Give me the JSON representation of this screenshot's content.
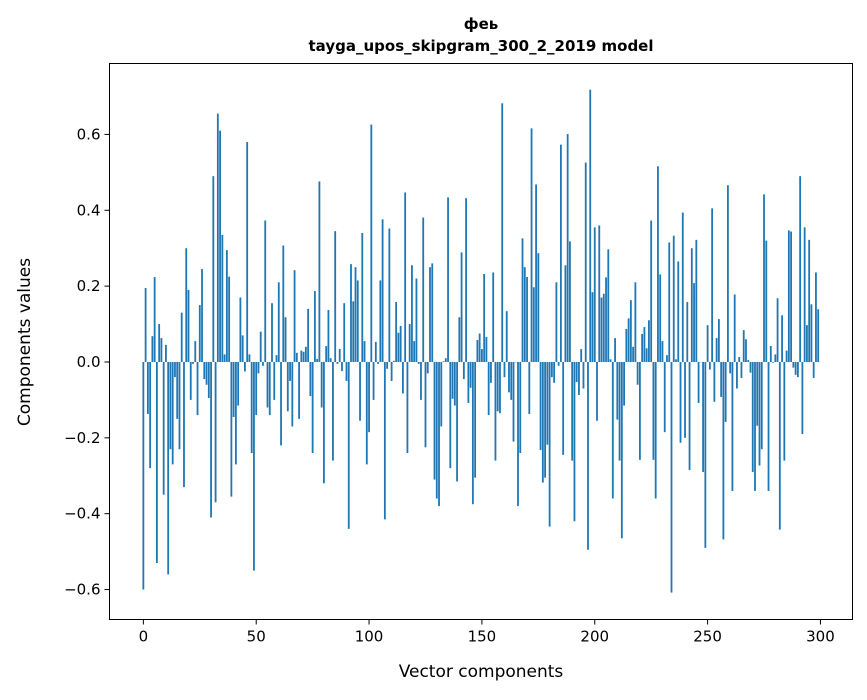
{
  "chart_data": {
    "type": "bar",
    "title": "феь",
    "subtitle": "tayga_upos_skipgram_300_2_2019 model",
    "xlabel": "Vector components",
    "ylabel": "Components values",
    "xlim": [
      -15,
      314.2
    ],
    "ylim": [
      -0.679,
      0.787
    ],
    "xticks": [
      0,
      50,
      100,
      150,
      200,
      250,
      300
    ],
    "xtick_labels": [
      "0",
      "50",
      "100",
      "150",
      "200",
      "250",
      "300"
    ],
    "yticks": [
      -0.6,
      -0.4,
      -0.2,
      0.0,
      0.2,
      0.4,
      0.6
    ],
    "ytick_labels": [
      "−0.6",
      "−0.4",
      "−0.2",
      "0.0",
      "0.2",
      "0.4",
      "0.6"
    ],
    "grid": false,
    "color": "#1f77b4",
    "values": [
      -0.6,
      0.195,
      -0.137,
      -0.28,
      0.068,
      0.224,
      -0.53,
      0.1,
      0.063,
      -0.35,
      0.045,
      -0.56,
      -0.23,
      -0.27,
      -0.04,
      -0.15,
      -0.23,
      0.13,
      -0.33,
      0.3,
      0.19,
      -0.1,
      -0.005,
      0.055,
      -0.14,
      0.15,
      0.245,
      -0.045,
      -0.06,
      -0.095,
      -0.41,
      0.49,
      -0.37,
      0.655,
      0.61,
      0.335,
      0.02,
      0.295,
      0.225,
      -0.355,
      -0.145,
      -0.27,
      -0.115,
      0.17,
      0.07,
      -0.025,
      0.58,
      0.02,
      -0.24,
      -0.55,
      -0.14,
      -0.03,
      0.08,
      -0.01,
      0.373,
      -0.12,
      -0.14,
      0.155,
      -0.1,
      0.018,
      0.21,
      -0.22,
      0.307,
      0.118,
      -0.13,
      -0.05,
      -0.17,
      0.242,
      0.024,
      -0.15,
      0.03,
      0.027,
      0.04,
      0.14,
      -0.09,
      -0.24,
      0.187,
      0.008,
      0.476,
      -0.12,
      -0.32,
      0.042,
      0.137,
      0.01,
      -0.26,
      0.345,
      -0.005,
      0.034,
      -0.024,
      0.155,
      -0.05,
      -0.44,
      0.258,
      0.16,
      0.25,
      0.215,
      -0.155,
      0.34,
      0.055,
      -0.27,
      -0.185,
      0.626,
      -0.1,
      0.053,
      -0.005,
      0.215,
      0.376,
      -0.415,
      -0.018,
      0.352,
      -0.05,
      0.003,
      0.158,
      0.077,
      0.095,
      -0.083,
      0.447,
      -0.24,
      0.1,
      0.255,
      0.055,
      0.22,
      -0.005,
      -0.1,
      0.381,
      -0.225,
      -0.03,
      0.25,
      0.26,
      -0.31,
      -0.36,
      -0.38,
      -0.17,
      0.002,
      0.01,
      0.434,
      -0.28,
      -0.097,
      -0.115,
      -0.315,
      0.118,
      0.289,
      -0.045,
      0.432,
      -0.108,
      -0.068,
      -0.375,
      -0.305,
      0.058,
      0.075,
      0.034,
      0.232,
      0.066,
      -0.14,
      -0.055,
      0.236,
      -0.26,
      -0.13,
      -0.135,
      0.682,
      -0.04,
      0.134,
      -0.08,
      -0.1,
      -0.21,
      0.0,
      -0.38,
      -0.24,
      0.326,
      0.25,
      0.224,
      -0.137,
      0.616,
      0.197,
      0.468,
      0.287,
      -0.232,
      -0.318,
      -0.305,
      -0.218,
      -0.434,
      -0.04,
      -0.055,
      0.21,
      -0.01,
      0.573,
      -0.245,
      0.255,
      0.601,
      0.318,
      -0.26,
      -0.42,
      -0.053,
      -0.087,
      0.034,
      -0.07,
      0.526,
      -0.495,
      0.718,
      0.184,
      0.355,
      -0.155,
      0.36,
      0.17,
      0.18,
      0.223,
      0.297,
      0.007,
      -0.36,
      0.063,
      -0.152,
      -0.26,
      -0.465,
      -0.115,
      0.087,
      0.115,
      0.163,
      0.04,
      0.21,
      -0.06,
      -0.258,
      0.074,
      0.092,
      0.036,
      0.11,
      0.373,
      -0.258,
      -0.36,
      0.516,
      0.231,
      0.055,
      -0.185,
      0.018,
      0.315,
      -0.608,
      0.333,
      0.007,
      0.265,
      -0.213,
      0.394,
      -0.2,
      0.158,
      -0.285,
      0.3,
      0.208,
      0.322,
      -0.108,
      0.0,
      -0.29,
      -0.49,
      0.097,
      -0.02,
      0.405,
      -0.105,
      0.063,
      0.113,
      -0.092,
      -0.468,
      -0.158,
      0.466,
      -0.03,
      -0.34,
      0.178,
      -0.07,
      0.013,
      -0.042,
      0.084,
      0.06,
      0.005,
      -0.028,
      -0.29,
      -0.34,
      -0.168,
      -0.273,
      -0.23,
      0.442,
      0.32,
      -0.34,
      0.042,
      -0.002,
      0.02,
      0.168,
      -0.442,
      0.123,
      -0.26,
      0.03,
      0.347,
      0.344,
      -0.015,
      -0.034,
      -0.04,
      0.49,
      -0.19,
      0.355,
      0.097,
      0.322,
      0.152,
      -0.042,
      0.236,
      0.139
    ]
  }
}
